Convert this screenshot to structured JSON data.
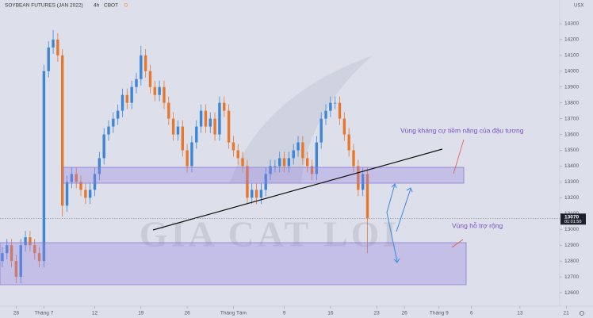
{
  "chart_data": {
    "type": "candlestick",
    "title": "SOYBEAN FUTURES (JAN 2022)",
    "interval": "4h",
    "exchange": "CBOT",
    "badge": "D",
    "currency": "USX",
    "watermark": "GIA CAT LOI",
    "annotations": [
      "Vùng kháng cự tiềm năng của đậu tương",
      "Vùng hỗ trợ rộng"
    ],
    "up_color": "#3d86d6",
    "down_color": "#e8772e",
    "open": [
      12800,
      12850,
      12900,
      12800,
      12700,
      12900,
      12950,
      12900,
      12850,
      12800,
      14000,
      14150,
      14200,
      14100,
      13150,
      13300,
      13350,
      13300,
      13250,
      13200,
      13250,
      13350,
      13450,
      13600,
      13650,
      13700,
      13750,
      13850,
      13800,
      13900,
      13950,
      14100,
      14000,
      13900,
      13850,
      13900,
      13800,
      13700,
      13600,
      13650,
      13500,
      13400,
      13550,
      13650,
      13750,
      13650,
      13700,
      13600,
      13800,
      13750,
      13550,
      13500,
      13450,
      13400,
      13200,
      13250,
      13200,
      13250,
      13350,
      13400,
      13400,
      13450,
      13400,
      13450,
      13500,
      13550,
      13450,
      13400,
      13350,
      13550,
      13700,
      13750,
      13800,
      13800,
      13700,
      13600,
      13500,
      13400,
      13250,
      13350
    ],
    "high": [
      12890,
      12940,
      12940,
      12840,
      12940,
      12990,
      12990,
      12940,
      12890,
      14040,
      14190,
      14260,
      14240,
      14140,
      13340,
      13390,
      13390,
      13340,
      13290,
      13290,
      13390,
      13490,
      13640,
      13690,
      13740,
      13790,
      13890,
      13890,
      13940,
      13990,
      14160,
      14140,
      14040,
      13940,
      13940,
      13940,
      13840,
      13740,
      13690,
      13690,
      13540,
      13590,
      13690,
      13790,
      13790,
      13740,
      13740,
      13840,
      13840,
      13790,
      13590,
      13540,
      13490,
      13440,
      13290,
      13290,
      13290,
      13390,
      13440,
      13440,
      13490,
      13490,
      13490,
      13540,
      13590,
      13590,
      13490,
      13440,
      13590,
      13740,
      13790,
      13840,
      13840,
      13840,
      13740,
      13640,
      13540,
      13440,
      13390,
      13390
    ],
    "low": [
      12760,
      12810,
      12760,
      12660,
      12660,
      12860,
      12860,
      12810,
      12760,
      12760,
      13960,
      14110,
      14060,
      13080,
      13110,
      13260,
      13260,
      13210,
      13160,
      13160,
      13210,
      13310,
      13410,
      13560,
      13610,
      13660,
      13710,
      13760,
      13760,
      13860,
      13910,
      13960,
      13860,
      13810,
      13810,
      13760,
      13660,
      13560,
      13560,
      13460,
      13360,
      13360,
      13510,
      13610,
      13610,
      13610,
      13560,
      13560,
      13710,
      13510,
      13460,
      13410,
      13360,
      13160,
      13160,
      13160,
      13160,
      13210,
      13310,
      13360,
      13360,
      13360,
      13360,
      13410,
      13460,
      13410,
      13360,
      13310,
      13310,
      13510,
      13660,
      13710,
      13760,
      13660,
      13560,
      13460,
      13360,
      13210,
      13210,
      12850
    ],
    "close": [
      12850,
      12900,
      12800,
      12700,
      12900,
      12950,
      12900,
      12850,
      12800,
      14000,
      14150,
      14200,
      14100,
      13150,
      13300,
      13350,
      13300,
      13250,
      13200,
      13250,
      13350,
      13450,
      13600,
      13650,
      13700,
      13750,
      13850,
      13800,
      13900,
      13950,
      14100,
      14000,
      13900,
      13850,
      13900,
      13800,
      13700,
      13600,
      13650,
      13500,
      13400,
      13550,
      13650,
      13750,
      13650,
      13700,
      13600,
      13800,
      13750,
      13550,
      13500,
      13450,
      13400,
      13200,
      13250,
      13200,
      13250,
      13350,
      13400,
      13400,
      13450,
      13400,
      13450,
      13500,
      13550,
      13450,
      13400,
      13350,
      13550,
      13700,
      13750,
      13800,
      13800,
      13700,
      13600,
      13500,
      13400,
      13250,
      13350,
      13070
    ],
    "last_price": 13070,
    "countdown": "01:01:50",
    "xlim": [
      -0.5,
      123
    ],
    "xticks": [
      {
        "value": 3,
        "label": "28"
      },
      {
        "value": 9,
        "label": "Tháng 7"
      },
      {
        "value": 20,
        "label": "12"
      },
      {
        "value": 30,
        "label": "19"
      },
      {
        "value": 40,
        "label": "26"
      },
      {
        "value": 50,
        "label": "Tháng Tám"
      },
      {
        "value": 61,
        "label": "9"
      },
      {
        "value": 71,
        "label": "16"
      },
      {
        "value": 81,
        "label": "23"
      },
      {
        "value": 87,
        "label": "26"
      },
      {
        "value": 94.5,
        "label": "Tháng 9"
      },
      {
        "value": 101.5,
        "label": "6"
      },
      {
        "value": 112,
        "label": "13"
      },
      {
        "value": 122,
        "label": "21"
      }
    ],
    "ylim": [
      12520,
      14450
    ],
    "yticks": [
      12600,
      12700,
      12800,
      12900,
      13000,
      13100,
      13200,
      13300,
      13400,
      13500,
      13600,
      13700,
      13800,
      13900,
      14000,
      14100,
      14200,
      14300
    ]
  }
}
